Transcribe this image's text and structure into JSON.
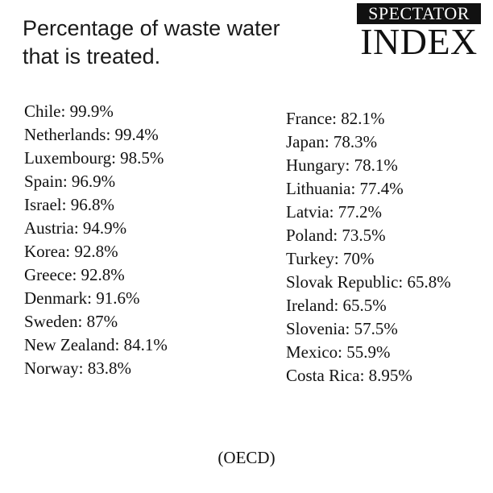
{
  "title": {
    "line1": "Percentage of waste water",
    "line2": "that is treated."
  },
  "logo": {
    "top": "SPECTATOR",
    "bottom": "INDEX"
  },
  "left_column": [
    "Chile: 99.9%",
    "Netherlands: 99.4%",
    "Luxembourg: 98.5%",
    "Spain: 96.9%",
    "Israel: 96.8%",
    "Austria: 94.9%",
    "Korea: 92.8%",
    "Greece: 92.8%",
    "Denmark: 91.6%",
    "Sweden: 87%",
    "New Zealand: 84.1%",
    "Norway: 83.8%"
  ],
  "right_column": [
    "France: 82.1%",
    "Japan: 78.3%",
    "Hungary: 78.1%",
    "Lithuania: 77.4%",
    "Latvia: 77.2%",
    "Poland: 73.5%",
    "Turkey: 70%",
    "Slovak Republic: 65.8%",
    "Ireland: 65.5%",
    "Slovenia: 57.5%",
    "Mexico: 55.9%",
    "Costa Rica: 8.95%"
  ],
  "source": "(OECD)"
}
